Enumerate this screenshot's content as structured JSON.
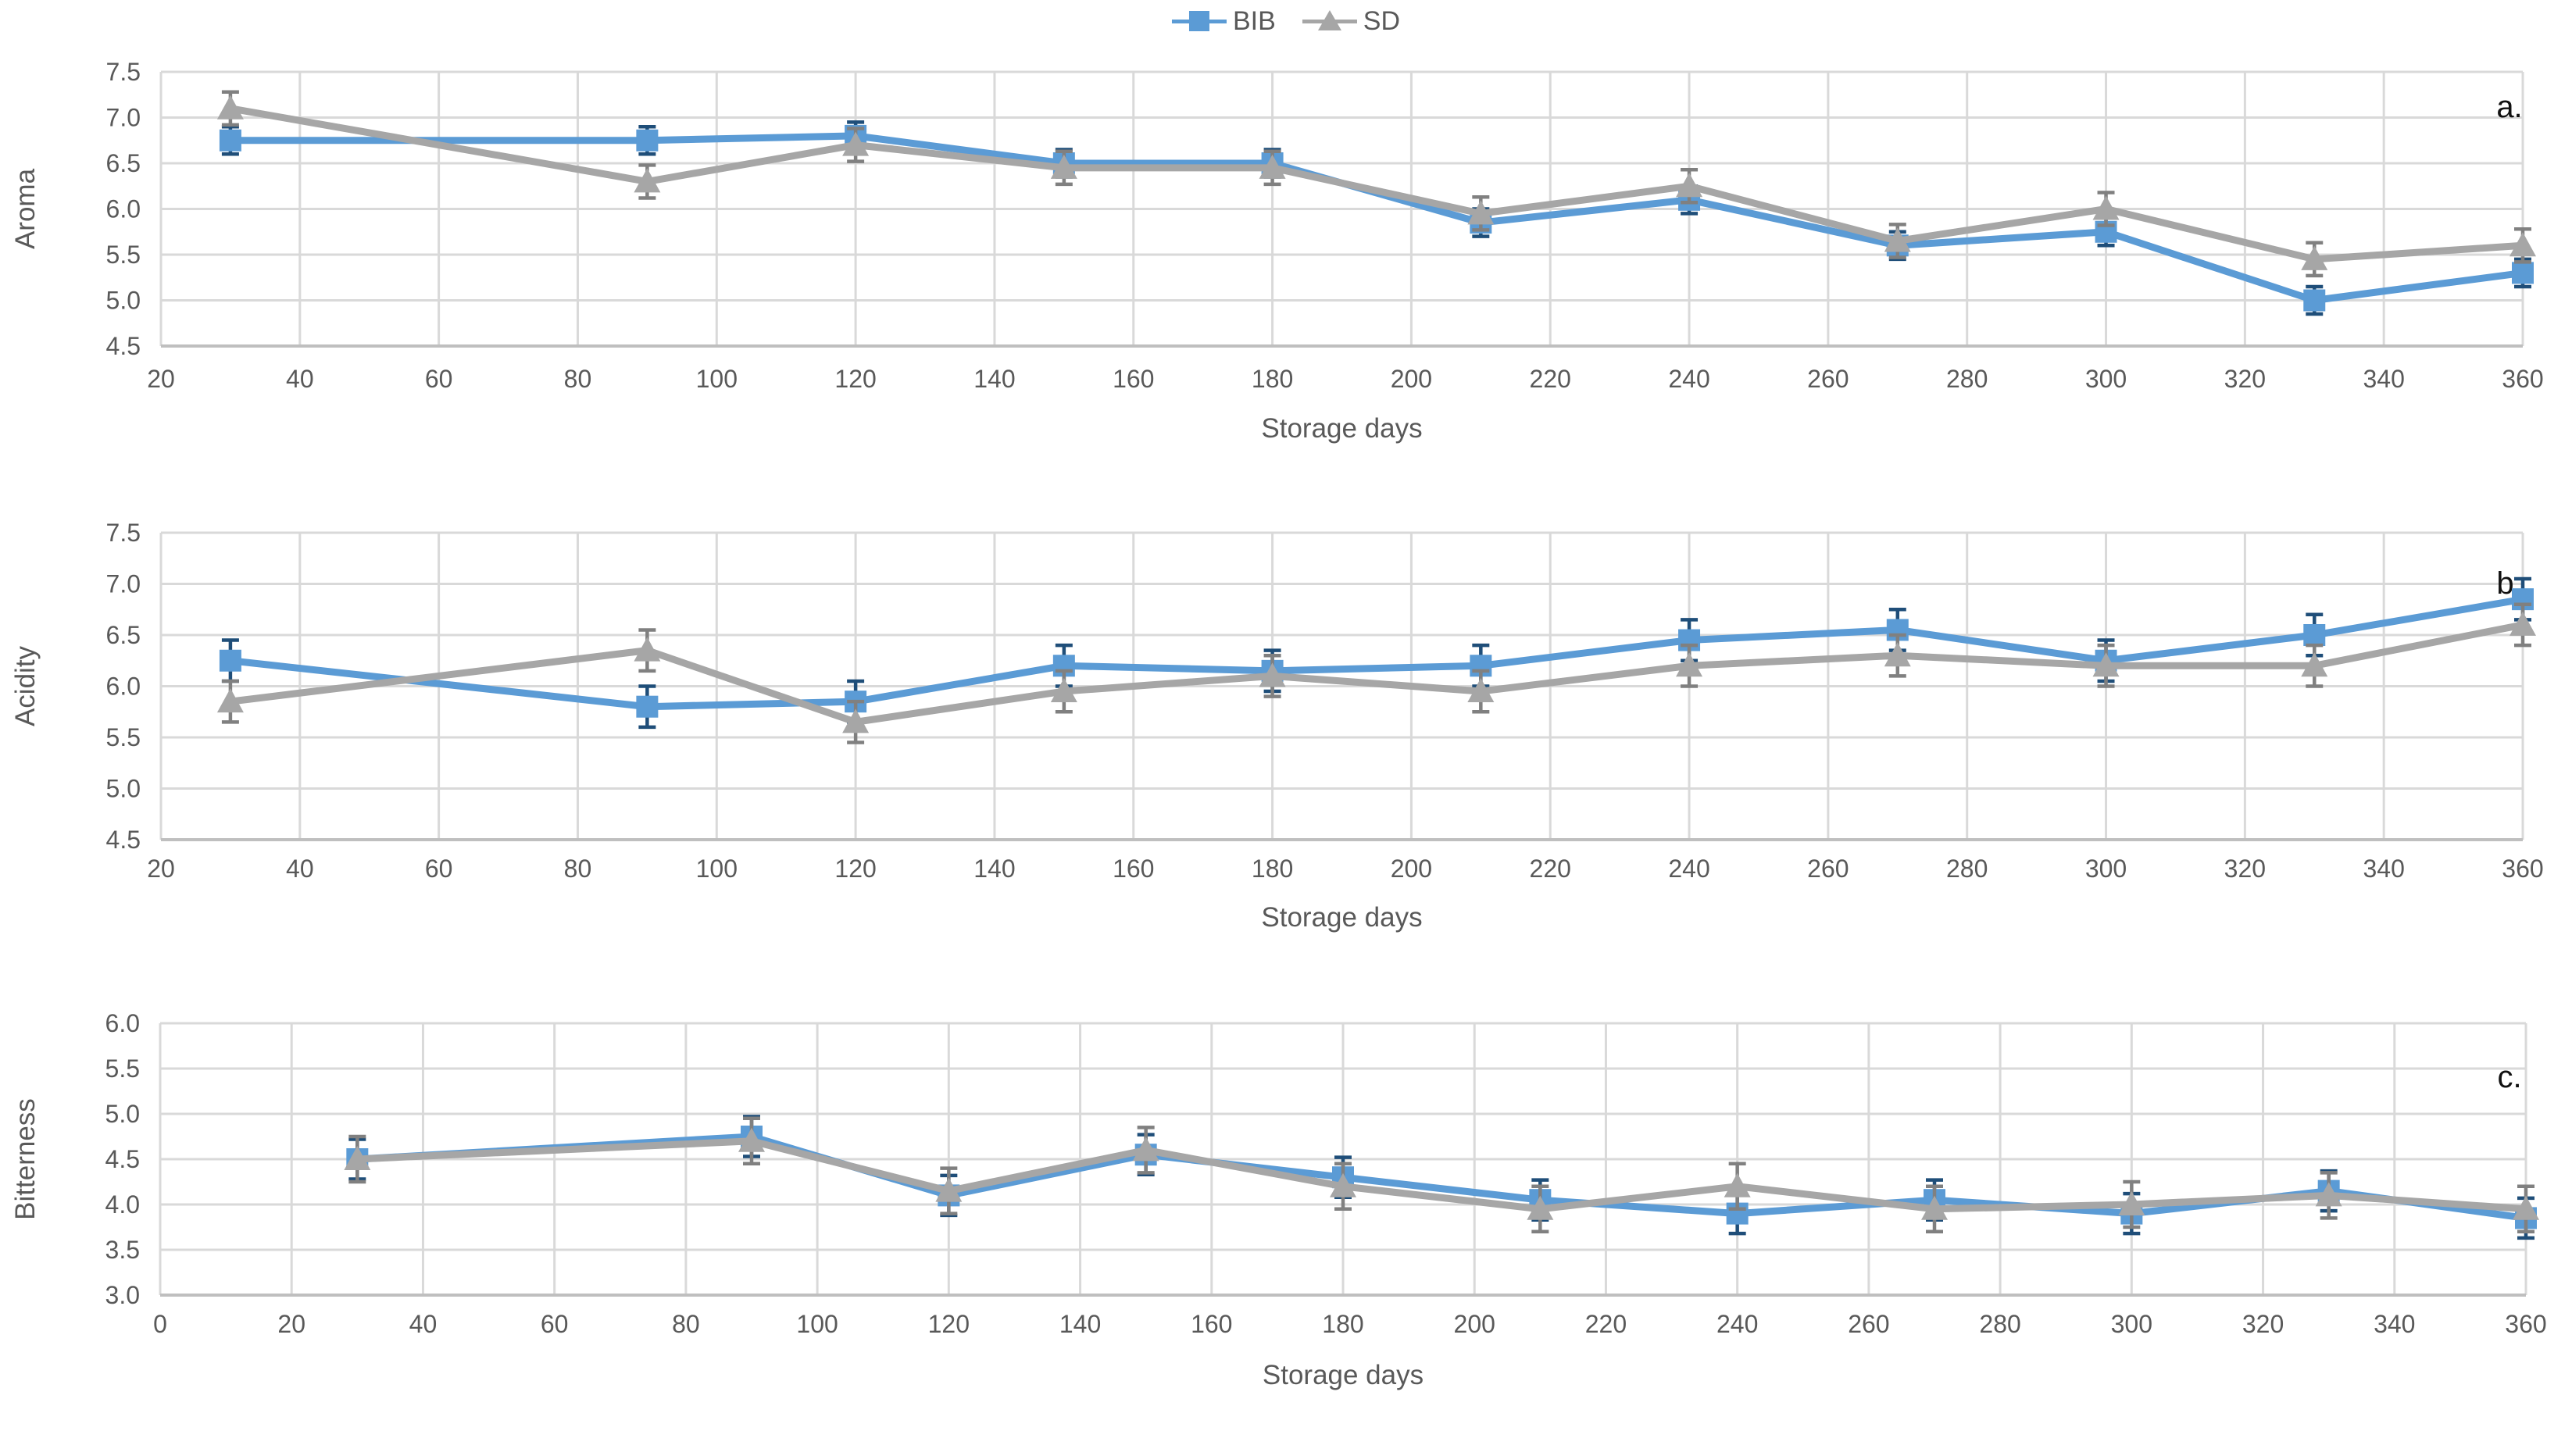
{
  "legend": {
    "items": [
      {
        "label": "BIB",
        "marker": "square",
        "color": "#5B9BD5",
        "error_color": "#1F4E79"
      },
      {
        "label": "SD",
        "marker": "triangle",
        "color": "#A6A6A6",
        "error_color": "#808080"
      }
    ]
  },
  "colors": {
    "grid": "#D9D9D9",
    "axis_line": "#BFBFBF",
    "tick_text": "#595959",
    "panel_letter": "#111111"
  },
  "chart_data": [
    {
      "type": "line",
      "panel_label": "a.",
      "ylabel": "Aroma",
      "xlabel": "Storage days",
      "xlim": [
        20,
        360
      ],
      "ylim": [
        4.5,
        7.5
      ],
      "grid": true,
      "legend_position": "top-center",
      "x_ticks": [
        20,
        40,
        60,
        80,
        100,
        120,
        140,
        160,
        180,
        200,
        220,
        240,
        260,
        280,
        300,
        320,
        340,
        360
      ],
      "y_ticks": [
        7.5,
        7.0,
        6.5,
        6.0,
        5.5,
        5.0,
        4.5
      ],
      "x": [
        30,
        90,
        120,
        150,
        180,
        210,
        240,
        270,
        300,
        330,
        360
      ],
      "series": [
        {
          "name": "BIB",
          "values": [
            6.75,
            6.75,
            6.8,
            6.5,
            6.5,
            5.85,
            6.1,
            5.6,
            5.75,
            5.0,
            5.3
          ],
          "error": 0.15
        },
        {
          "name": "SD",
          "values": [
            7.1,
            6.3,
            6.7,
            6.45,
            6.45,
            5.95,
            6.25,
            5.65,
            6.0,
            5.45,
            5.6
          ],
          "error": 0.18
        }
      ]
    },
    {
      "type": "line",
      "panel_label": "b.",
      "ylabel": "Acidity",
      "xlabel": "Storage days",
      "xlim": [
        20,
        360
      ],
      "ylim": [
        4.5,
        7.5
      ],
      "grid": true,
      "x_ticks": [
        20,
        40,
        60,
        80,
        100,
        120,
        140,
        160,
        180,
        200,
        220,
        240,
        260,
        280,
        300,
        320,
        340,
        360
      ],
      "y_ticks": [
        7.5,
        7.0,
        6.5,
        6.0,
        5.5,
        5.0,
        4.5
      ],
      "x": [
        30,
        90,
        120,
        150,
        180,
        210,
        240,
        270,
        300,
        330,
        360
      ],
      "series": [
        {
          "name": "BIB",
          "values": [
            6.25,
            5.8,
            5.85,
            6.2,
            6.15,
            6.2,
            6.45,
            6.55,
            6.25,
            6.5,
            6.85
          ],
          "error": 0.2
        },
        {
          "name": "SD",
          "values": [
            5.85,
            6.35,
            5.65,
            5.95,
            6.1,
            5.95,
            6.2,
            6.3,
            6.2,
            6.2,
            6.6
          ],
          "error": 0.2
        }
      ]
    },
    {
      "type": "line",
      "panel_label": "c.",
      "ylabel": "Bitterness",
      "xlabel": "Storage days",
      "xlim": [
        0,
        360
      ],
      "ylim": [
        3.0,
        6.0
      ],
      "grid": true,
      "x_ticks": [
        0,
        20,
        40,
        60,
        80,
        100,
        120,
        140,
        160,
        180,
        200,
        220,
        240,
        260,
        280,
        300,
        320,
        340,
        360
      ],
      "y_ticks": [
        6.0,
        5.5,
        5.0,
        4.5,
        4.0,
        3.5,
        3.0
      ],
      "x": [
        30,
        90,
        120,
        150,
        180,
        210,
        240,
        270,
        300,
        330,
        360
      ],
      "series": [
        {
          "name": "BIB",
          "values": [
            4.5,
            4.75,
            4.1,
            4.55,
            4.3,
            4.05,
            3.9,
            4.05,
            3.9,
            4.15,
            3.85
          ],
          "error": 0.22
        },
        {
          "name": "SD",
          "values": [
            4.5,
            4.7,
            4.15,
            4.6,
            4.2,
            3.95,
            4.2,
            3.95,
            4.0,
            4.1,
            3.95
          ],
          "error": 0.25
        }
      ]
    }
  ]
}
